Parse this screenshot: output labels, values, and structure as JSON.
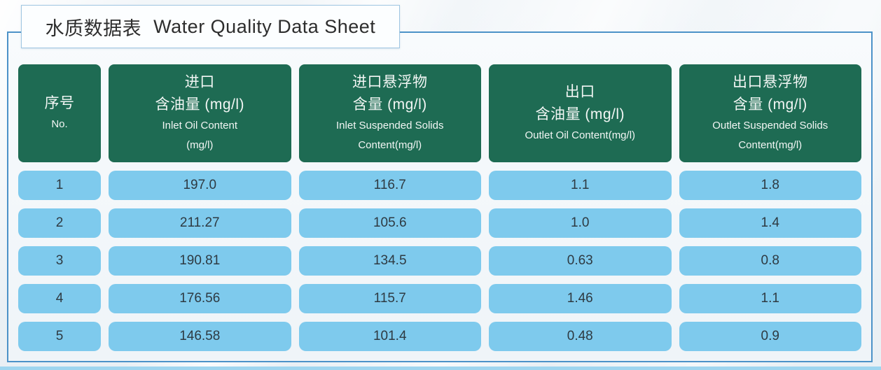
{
  "title": {
    "zh": "水质数据表",
    "en": "Water Quality Data Sheet"
  },
  "table": {
    "columns": [
      {
        "key": "no",
        "zh_lines": [
          "序号"
        ],
        "en_lines": [
          "No."
        ]
      },
      {
        "key": "inlet-oil-content",
        "zh_lines": [
          "进口",
          "含油量 (mg/l)"
        ],
        "en_lines": [
          "Inlet Oil Content",
          "(mg/l)"
        ]
      },
      {
        "key": "inlet-suspended-solids",
        "zh_lines": [
          "进口悬浮物",
          "含量 (mg/l)"
        ],
        "en_lines": [
          "Inlet Suspended Solids",
          "Content(mg/l)"
        ]
      },
      {
        "key": "outlet-oil-content",
        "zh_lines": [
          "出口",
          "含油量 (mg/l)"
        ],
        "en_lines": [
          "Outlet Oil Content(mg/l)"
        ]
      },
      {
        "key": "outlet-suspended-solids",
        "zh_lines": [
          "出口悬浮物",
          "含量 (mg/l)"
        ],
        "en_lines": [
          "Outlet Suspended Solids",
          "Content(mg/l)"
        ]
      }
    ],
    "rows": [
      [
        "1",
        "197.0",
        "116.7",
        "1.1",
        "1.8"
      ],
      [
        "2",
        "211.27",
        "105.6",
        "1.0",
        "1.4"
      ],
      [
        "3",
        "190.81",
        "134.5",
        "0.63",
        "0.8"
      ],
      [
        "4",
        "176.56",
        "115.7",
        "1.46",
        "1.1"
      ],
      [
        "5",
        "146.58",
        "101.4",
        "0.48",
        "0.9"
      ]
    ]
  },
  "chart_data": {
    "type": "table",
    "title": "水质数据表 Water Quality Data Sheet",
    "categories": [
      1,
      2,
      3,
      4,
      5
    ],
    "series": [
      {
        "name": "进口含油量 Inlet Oil Content (mg/l)",
        "values": [
          197.0,
          211.27,
          190.81,
          176.56,
          146.58
        ]
      },
      {
        "name": "进口悬浮物含量 Inlet Suspended Solids Content (mg/l)",
        "values": [
          116.7,
          105.6,
          134.5,
          115.7,
          101.4
        ]
      },
      {
        "name": "出口含油量 Outlet Oil Content (mg/l)",
        "values": [
          1.1,
          1.0,
          0.63,
          1.46,
          0.48
        ]
      },
      {
        "name": "出口悬浮物含量 Outlet Suspended Solids Content (mg/l)",
        "values": [
          1.8,
          1.4,
          0.8,
          1.1,
          0.9
        ]
      }
    ]
  },
  "colors": {
    "header_bg": "#1e6b53",
    "cell_bg": "#7ecaed",
    "cell_text": "#2e3a42",
    "panel_border": "#4c92c8",
    "title_border": "#9fc6e2",
    "bottom_strip": "#9ed5ef"
  }
}
